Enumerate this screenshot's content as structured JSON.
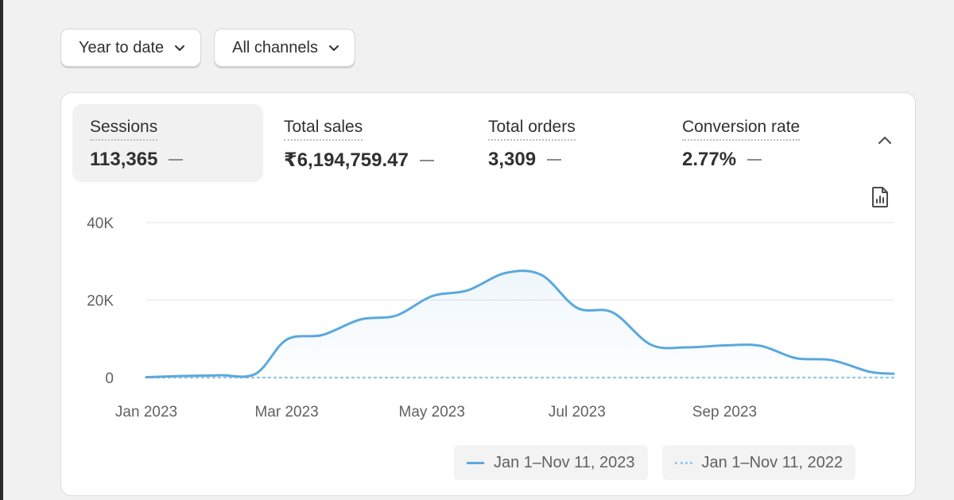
{
  "filters": {
    "date_range": "Year to date",
    "channels": "All channels"
  },
  "metrics": [
    {
      "label": "Sessions",
      "value": "113,365"
    },
    {
      "label": "Total sales",
      "value": "₹6,194,759.47"
    },
    {
      "label": "Total orders",
      "value": "3,309"
    },
    {
      "label": "Conversion rate",
      "value": "2.77%"
    }
  ],
  "icons": {
    "collapse": "chevron-up-icon",
    "report": "report-icon",
    "filter_dropdown": "chevron-down-icon"
  },
  "colors": {
    "current_series": "#5aa9dc",
    "previous_series": "#9cc9e6",
    "active_metric_bg": "#f1f1f1"
  },
  "chart_data": {
    "type": "area",
    "y_tick_labels": [
      "0",
      "20K",
      "40K"
    ],
    "x_tick_labels": [
      "Jan 2023",
      "Mar 2023",
      "May 2023",
      "Jul 2023",
      "Sep 2023"
    ],
    "ylim": [
      0,
      40000
    ],
    "xlim": [
      "2023-01-01",
      "2023-11-11"
    ],
    "x_ticks": [
      "2023-01-01",
      "2023-03-01",
      "2023-05-01",
      "2023-07-01",
      "2023-09-01"
    ],
    "grid": true,
    "legend_position": "bottom-right",
    "series": [
      {
        "name": "Jan 1–Nov 11, 2023",
        "style": "solid",
        "x": [
          "2023-01-01",
          "2023-01-16",
          "2023-02-01",
          "2023-02-16",
          "2023-03-01",
          "2023-03-16",
          "2023-04-01",
          "2023-04-16",
          "2023-05-01",
          "2023-05-16",
          "2023-06-01",
          "2023-06-16",
          "2023-07-01",
          "2023-07-16",
          "2023-08-01",
          "2023-08-16",
          "2023-09-01",
          "2023-09-16",
          "2023-10-01",
          "2023-10-16",
          "2023-11-01",
          "2023-11-11"
        ],
        "values": [
          100,
          400,
          600,
          1000,
          9800,
          11000,
          15000,
          16000,
          21000,
          22500,
          27000,
          26500,
          18000,
          16800,
          8500,
          7800,
          8300,
          8200,
          5000,
          4500,
          1500,
          1000
        ]
      },
      {
        "name": "Jan 1–Nov 11, 2022",
        "style": "dotted",
        "x": [
          "2023-01-01",
          "2023-11-11"
        ],
        "values": [
          0,
          0
        ]
      }
    ]
  }
}
